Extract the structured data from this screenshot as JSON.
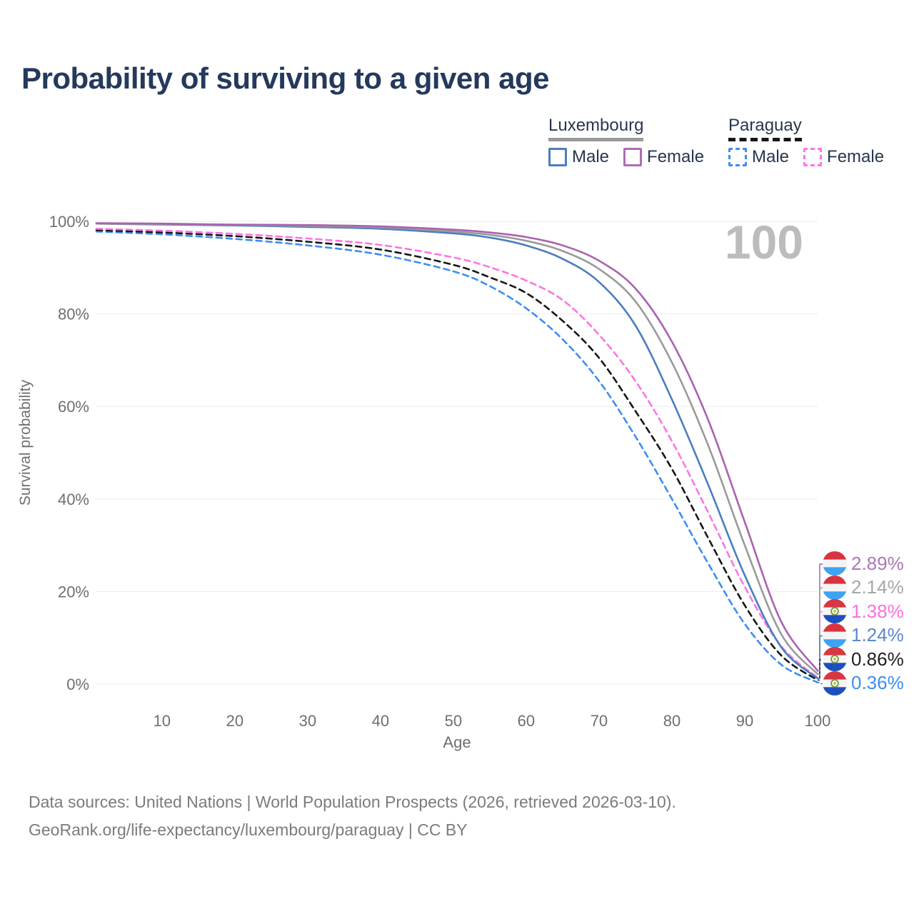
{
  "title": "Probability of surviving to a given age",
  "watermark": "100",
  "legend": {
    "position": "top-right",
    "groups": [
      {
        "label": "Luxembourg",
        "line_color": "#9a9a9a",
        "dashed": false,
        "items": [
          {
            "label": "Male",
            "color": "#4a7dc0",
            "dashed": false
          },
          {
            "label": "Female",
            "color": "#b06cb6",
            "dashed": false
          }
        ]
      },
      {
        "label": "Paraguay",
        "line_color": "#161616",
        "dashed": true,
        "items": [
          {
            "label": "Male",
            "color": "#3c8df4",
            "dashed": true
          },
          {
            "label": "Female",
            "color": "#fc75e3",
            "dashed": true
          }
        ]
      }
    ]
  },
  "axes": {
    "ylabel": "Survival probability",
    "xlabel": "Age",
    "y_ticks": [
      {
        "value": 0,
        "label": "0%"
      },
      {
        "value": 20,
        "label": "20%"
      },
      {
        "value": 40,
        "label": "40%"
      },
      {
        "value": 60,
        "label": "60%"
      },
      {
        "value": 80,
        "label": "80%"
      },
      {
        "value": 100,
        "label": "100%"
      }
    ],
    "x_ticks": [
      10,
      20,
      30,
      40,
      50,
      60,
      70,
      80,
      90,
      100
    ],
    "tick_color": "#6f6f6f",
    "grid_color": "#ebebeb"
  },
  "footer": {
    "line1": "Data sources: United Nations | World Population Prospects (2026, retrieved 2026-03-10).",
    "line2": "GeoRank.org/life-expectancy/luxembourg/paraguay | CC BY"
  },
  "chart_data": {
    "type": "line",
    "title": "Probability of surviving to a given age",
    "xlabel": "Age",
    "ylabel": "Survival probability",
    "xlim": [
      1,
      100
    ],
    "ylim": [
      0,
      100
    ],
    "grid": true,
    "legend_position": "top-right",
    "watermark": "100",
    "ages": [
      1,
      10,
      20,
      30,
      40,
      50,
      55,
      60,
      65,
      70,
      75,
      80,
      85,
      90,
      95,
      100
    ],
    "series": [
      {
        "name": "Paraguay Male",
        "color": "#3c8df4",
        "dashed": true,
        "flag": "py",
        "end_label": "0.36%",
        "end_label_color": "#3c8df4",
        "values": [
          97.8,
          97.2,
          96.2,
          94.8,
          92.8,
          89.2,
          86.0,
          81.2,
          74.5,
          65.5,
          53.5,
          40.0,
          26.0,
          13.0,
          4.2,
          0.36
        ]
      },
      {
        "name": "Paraguay",
        "color": "#161616",
        "dashed": true,
        "flag": "py",
        "end_label": "0.86%",
        "end_label_color": "#1f1f1f",
        "values": [
          98.1,
          97.6,
          96.8,
          95.6,
          93.9,
          90.6,
          87.9,
          84.5,
          78.5,
          70.5,
          59.0,
          46.5,
          31.5,
          17.0,
          6.2,
          0.86
        ]
      },
      {
        "name": "Paraguay Female",
        "color": "#fc75e3",
        "dashed": true,
        "flag": "py",
        "end_label": "1.38%",
        "end_label_color": "#fb6ee0",
        "values": [
          98.4,
          98.0,
          97.3,
          96.3,
          94.9,
          92.2,
          90.1,
          87.2,
          83.0,
          75.5,
          65.5,
          52.5,
          37.0,
          21.0,
          8.2,
          1.38
        ]
      },
      {
        "name": "Luxembourg Male",
        "color": "#4a7dc0",
        "dashed": false,
        "flag": "lu",
        "end_label": "1.24%",
        "end_label_color": "#5b87cb",
        "values": [
          99.5,
          99.3,
          99.1,
          98.8,
          98.4,
          97.4,
          96.5,
          94.8,
          91.9,
          86.9,
          77.5,
          61.5,
          43.0,
          23.5,
          8.0,
          1.24
        ]
      },
      {
        "name": "Luxembourg",
        "color": "#9a9a9a",
        "dashed": false,
        "flag": "lu",
        "end_label": "2.14%",
        "end_label_color": "#a6a6a6",
        "values": [
          99.5,
          99.4,
          99.2,
          99.0,
          98.7,
          97.8,
          97.1,
          95.8,
          93.6,
          89.7,
          82.7,
          69.5,
          51.5,
          30.0,
          10.8,
          2.14
        ]
      },
      {
        "name": "Luxembourg Female",
        "color": "#aa62b0",
        "dashed": false,
        "flag": "lu",
        "end_label": "2.89%",
        "end_label_color": "#ab77b5",
        "values": [
          99.6,
          99.5,
          99.3,
          99.2,
          98.9,
          98.2,
          97.6,
          96.6,
          94.8,
          91.5,
          85.5,
          74.0,
          57.0,
          35.0,
          13.5,
          2.89
        ]
      }
    ]
  }
}
